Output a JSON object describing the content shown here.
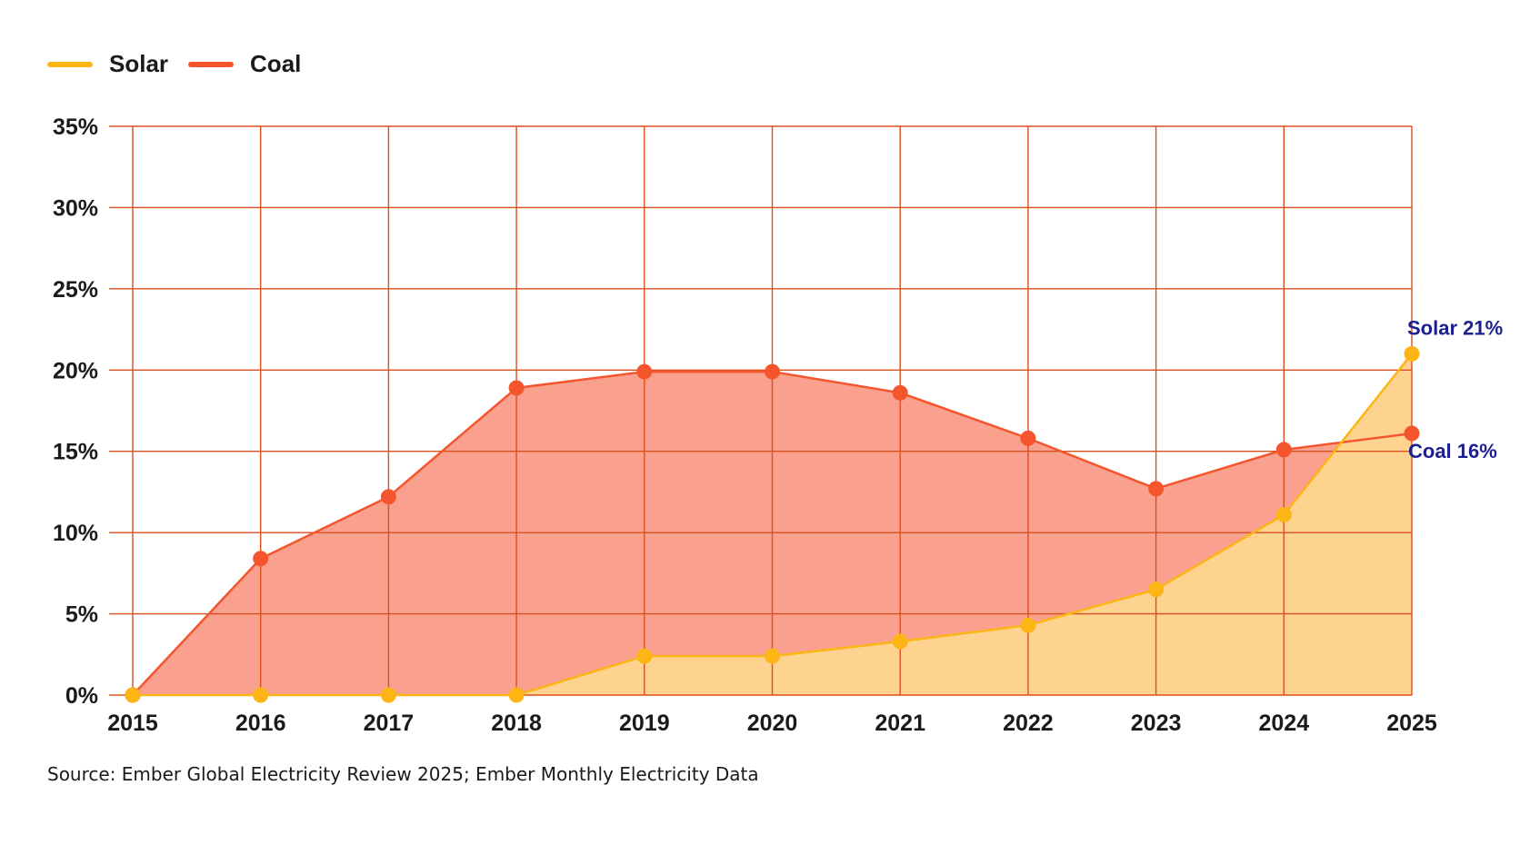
{
  "chart_data": {
    "type": "area",
    "title": "",
    "xlabel": "",
    "ylabel": "",
    "x": [
      2015,
      2016,
      2017,
      2018,
      2019,
      2020,
      2021,
      2022,
      2023,
      2024,
      2025
    ],
    "x_tick_labels": [
      "2015",
      "2016",
      "2017",
      "2018",
      "2019",
      "2020",
      "2021",
      "2022",
      "2023",
      "2024",
      "2025"
    ],
    "ylim": [
      0,
      35
    ],
    "y_ticks": [
      0,
      5,
      10,
      15,
      20,
      25,
      30,
      35
    ],
    "y_tick_labels": [
      "0%",
      "5%",
      "10%",
      "15%",
      "20%",
      "25%",
      "30%",
      "35%"
    ],
    "grid": true,
    "legend_position": "top-left",
    "series": [
      {
        "name": "Solar",
        "color": "#FDB515",
        "fill": "#FDD38F",
        "values": [
          0,
          0,
          0,
          0,
          2.4,
          2.4,
          3.3,
          4.3,
          6.5,
          11.1,
          21.0
        ],
        "end_label": "Solar 21%"
      },
      {
        "name": "Coal",
        "color": "#F4552D",
        "fill": "#F9A08E",
        "values": [
          0,
          8.4,
          12.2,
          18.9,
          19.9,
          19.9,
          18.6,
          15.8,
          12.7,
          15.1,
          16.1
        ],
        "end_label": "Coal 16%"
      }
    ],
    "grid_color": "#D9501F",
    "annotation_color": "#1B1F8F"
  },
  "source": "Source:  Ember Global Electricity Review 2025;  Ember Monthly Electricity Data"
}
